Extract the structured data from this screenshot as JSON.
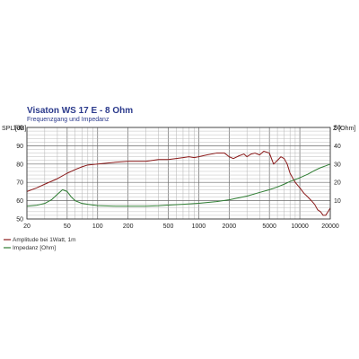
{
  "chart_data": {
    "type": "line",
    "title": "Visaton WS 17 E - 8 Ohm",
    "subtitle": "Frequenzgang und Impedanz",
    "ylabel_left": "SPL [dB]",
    "ylabel_right": "Z [Ohm]",
    "x_scale": "log",
    "xlim": [
      20,
      20000
    ],
    "ylim_left": [
      50,
      100
    ],
    "ylim_right": [
      0,
      50
    ],
    "grid": true,
    "x_ticks": [
      20,
      50,
      100,
      200,
      500,
      1000,
      2000,
      5000,
      10000,
      20000
    ],
    "x_tick_labels": [
      "20",
      "50",
      "100",
      "200",
      "500",
      "1000",
      "2000",
      "5000",
      "10000",
      "20000"
    ],
    "y_ticks_left": [
      50,
      60,
      70,
      80,
      90,
      100
    ],
    "y_tick_labels_left": [
      "50",
      "60",
      "70",
      "80",
      "90",
      "100"
    ],
    "y_ticks_right": [
      10,
      20,
      30,
      40,
      50
    ],
    "y_tick_labels_right": [
      "10",
      "20",
      "30",
      "40",
      "50"
    ],
    "legend_position": "bottom-left",
    "series": [
      {
        "name": "Amplitude bei 1Watt, 1m",
        "axis": "left",
        "color": "#8b1a1a",
        "x": [
          20,
          25,
          30,
          40,
          50,
          60,
          70,
          80,
          100,
          150,
          200,
          300,
          400,
          500,
          600,
          700,
          800,
          900,
          1000,
          1200,
          1500,
          1800,
          2000,
          2200,
          2500,
          2800,
          3000,
          3300,
          3600,
          4000,
          4400,
          5000,
          5500,
          6000,
          6500,
          7000,
          7500,
          8000,
          9000,
          10000,
          11000,
          12000,
          13000,
          14000,
          15000,
          16000,
          17000,
          18000,
          19000,
          20000
        ],
        "y": [
          65,
          67,
          69,
          72,
          75,
          77,
          78.5,
          79.5,
          80,
          81,
          81.5,
          81.5,
          82.5,
          82.5,
          83,
          83.5,
          84,
          83.5,
          84,
          85,
          86,
          86,
          84,
          83,
          84.5,
          85.5,
          84,
          85.5,
          86,
          85,
          87,
          86,
          80,
          82,
          84,
          83,
          80,
          75,
          70,
          67,
          64,
          62,
          60,
          58,
          55,
          54,
          52,
          52,
          54,
          56
        ]
      },
      {
        "name": "Impedanz [Ohm]",
        "axis": "right",
        "color": "#2e7d32",
        "x": [
          20,
          25,
          30,
          35,
          40,
          45,
          50,
          55,
          60,
          70,
          80,
          100,
          150,
          200,
          300,
          400,
          500,
          700,
          1000,
          1500,
          2000,
          3000,
          4000,
          5000,
          6000,
          7000,
          8000,
          10000,
          12000,
          14000,
          16000,
          18000,
          20000
        ],
        "y": [
          7,
          7.5,
          8.5,
          10.5,
          13.5,
          16,
          15,
          12,
          10,
          8.5,
          8,
          7.3,
          7,
          7,
          7,
          7.2,
          7.6,
          8,
          8.6,
          9.5,
          10.5,
          12.5,
          14.5,
          16,
          17.5,
          19,
          20.5,
          22.5,
          24.5,
          26.5,
          28,
          29,
          30
        ]
      }
    ]
  }
}
